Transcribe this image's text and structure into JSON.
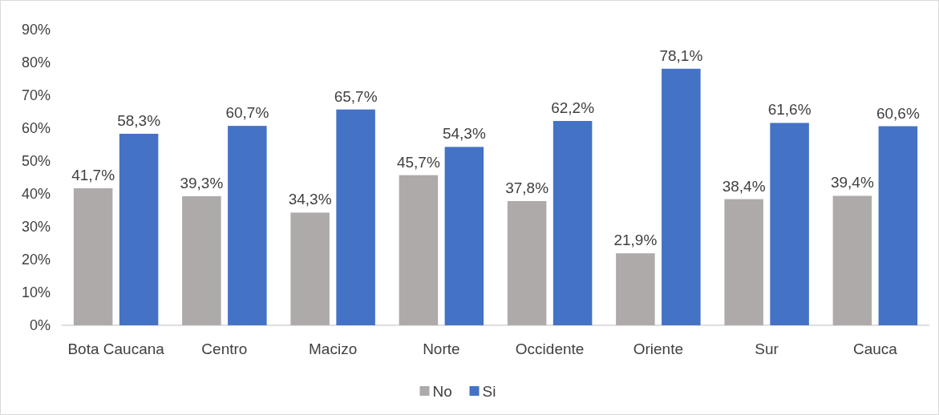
{
  "chart_data": {
    "type": "bar",
    "categories": [
      "Bota Caucana",
      "Centro",
      "Macizo",
      "Norte",
      "Occidente",
      "Oriente",
      "Sur",
      "Cauca"
    ],
    "series": [
      {
        "name": "No",
        "color": "#aeaaaa",
        "values": [
          41.7,
          39.3,
          34.3,
          45.7,
          37.8,
          21.9,
          38.4,
          39.4
        ],
        "value_labels": [
          "41,7%",
          "39,3%",
          "34,3%",
          "45,7%",
          "37,8%",
          "21,9%",
          "38,4%",
          "39,4%"
        ]
      },
      {
        "name": "Si",
        "color": "#4472c4",
        "values": [
          58.3,
          60.7,
          65.7,
          54.3,
          62.2,
          78.1,
          61.6,
          60.6
        ],
        "value_labels": [
          "58,3%",
          "60,7%",
          "65,7%",
          "54,3%",
          "62,2%",
          "78,1%",
          "61,6%",
          "60,6%"
        ]
      }
    ],
    "ylim": [
      0,
      90
    ],
    "yticks": [
      {
        "value": 0,
        "label": "0%"
      },
      {
        "value": 10,
        "label": "10%"
      },
      {
        "value": 20,
        "label": "20%"
      },
      {
        "value": 30,
        "label": "30%"
      },
      {
        "value": 40,
        "label": "40%"
      },
      {
        "value": 50,
        "label": "50%"
      },
      {
        "value": 60,
        "label": "60%"
      },
      {
        "value": 70,
        "label": "70%"
      },
      {
        "value": 80,
        "label": "80%"
      },
      {
        "value": 90,
        "label": "90%"
      }
    ],
    "grid": false,
    "legend": "bottom"
  }
}
